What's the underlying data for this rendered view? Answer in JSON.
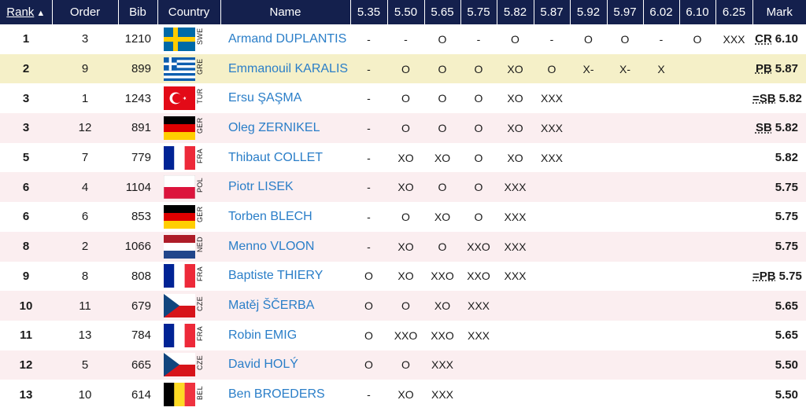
{
  "header": {
    "rank": "Rank",
    "order": "Order",
    "bib": "Bib",
    "country": "Country",
    "name": "Name",
    "heights": [
      "5.35",
      "5.50",
      "5.65",
      "5.75",
      "5.82",
      "5.87",
      "5.92",
      "5.97",
      "6.02",
      "6.10",
      "6.25"
    ],
    "mark": "Mark"
  },
  "rows": [
    {
      "rank": "1",
      "order": "3",
      "bib": "1210",
      "country": "SWE",
      "name": "Armand DUPLANTIS",
      "attempts": [
        "-",
        "-",
        "O",
        "-",
        "O",
        "-",
        "O",
        "O",
        "-",
        "O",
        "XXX"
      ],
      "note": "CR",
      "mark": "6.10"
    },
    {
      "rank": "2",
      "order": "9",
      "bib": "899",
      "country": "GRE",
      "name": "Emmanouil KARALIS",
      "attempts": [
        "-",
        "O",
        "O",
        "O",
        "XO",
        "O",
        "X-",
        "X-",
        "X",
        "",
        ""
      ],
      "note": "PB",
      "mark": "5.87"
    },
    {
      "rank": "3",
      "order": "1",
      "bib": "1243",
      "country": "TUR",
      "name": "Ersu ŞAŞMA",
      "attempts": [
        "-",
        "O",
        "O",
        "O",
        "XO",
        "XXX",
        "",
        "",
        "",
        "",
        ""
      ],
      "note": "=SB",
      "mark": "5.82"
    },
    {
      "rank": "3",
      "order": "12",
      "bib": "891",
      "country": "GER",
      "name": "Oleg ZERNIKEL",
      "attempts": [
        "-",
        "O",
        "O",
        "O",
        "XO",
        "XXX",
        "",
        "",
        "",
        "",
        ""
      ],
      "note": "SB",
      "mark": "5.82"
    },
    {
      "rank": "5",
      "order": "7",
      "bib": "779",
      "country": "FRA",
      "name": "Thibaut COLLET",
      "attempts": [
        "-",
        "XO",
        "XO",
        "O",
        "XO",
        "XXX",
        "",
        "",
        "",
        "",
        ""
      ],
      "note": "",
      "mark": "5.82"
    },
    {
      "rank": "6",
      "order": "4",
      "bib": "1104",
      "country": "POL",
      "name": "Piotr LISEK",
      "attempts": [
        "-",
        "XO",
        "O",
        "O",
        "XXX",
        "",
        "",
        "",
        "",
        "",
        ""
      ],
      "note": "",
      "mark": "5.75"
    },
    {
      "rank": "6",
      "order": "6",
      "bib": "853",
      "country": "GER",
      "name": "Torben BLECH",
      "attempts": [
        "-",
        "O",
        "XO",
        "O",
        "XXX",
        "",
        "",
        "",
        "",
        "",
        ""
      ],
      "note": "",
      "mark": "5.75"
    },
    {
      "rank": "8",
      "order": "2",
      "bib": "1066",
      "country": "NED",
      "name": "Menno VLOON",
      "attempts": [
        "-",
        "XO",
        "O",
        "XXO",
        "XXX",
        "",
        "",
        "",
        "",
        "",
        ""
      ],
      "note": "",
      "mark": "5.75"
    },
    {
      "rank": "9",
      "order": "8",
      "bib": "808",
      "country": "FRA",
      "name": "Baptiste THIERY",
      "attempts": [
        "O",
        "XO",
        "XXO",
        "XXO",
        "XXX",
        "",
        "",
        "",
        "",
        "",
        ""
      ],
      "note": "=PB",
      "mark": "5.75"
    },
    {
      "rank": "10",
      "order": "11",
      "bib": "679",
      "country": "CZE",
      "name": "Matěj ŠČERBA",
      "attempts": [
        "O",
        "O",
        "XO",
        "XXX",
        "",
        "",
        "",
        "",
        "",
        "",
        ""
      ],
      "note": "",
      "mark": "5.65"
    },
    {
      "rank": "11",
      "order": "13",
      "bib": "784",
      "country": "FRA",
      "name": "Robin EMIG",
      "attempts": [
        "O",
        "XXO",
        "XXO",
        "XXX",
        "",
        "",
        "",
        "",
        "",
        "",
        ""
      ],
      "note": "",
      "mark": "5.65"
    },
    {
      "rank": "12",
      "order": "5",
      "bib": "665",
      "country": "CZE",
      "name": "David HOLÝ",
      "attempts": [
        "O",
        "O",
        "XXX",
        "",
        "",
        "",
        "",
        "",
        "",
        "",
        ""
      ],
      "note": "",
      "mark": "5.50"
    },
    {
      "rank": "13",
      "order": "10",
      "bib": "614",
      "country": "BEL",
      "name": "Ben BROEDERS",
      "attempts": [
        "-",
        "XO",
        "XXX",
        "",
        "",
        "",
        "",
        "",
        "",
        "",
        ""
      ],
      "note": "",
      "mark": "5.50"
    }
  ],
  "colors": {
    "header_bg": "#14204d",
    "row_alt": "#fbeef0",
    "row_highlight": "#f5f0c8",
    "link": "#2a7ec8"
  }
}
